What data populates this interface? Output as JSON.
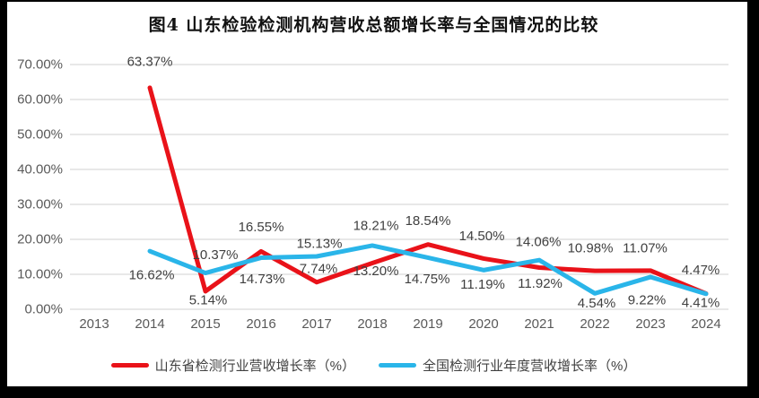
{
  "title": "图4  山东检验检测机构营收总额增长率与全国情况的比较",
  "colors": {
    "frame": "#000000",
    "surface": "#ffffff",
    "grid": "#d9d9d9",
    "axis_tick_text": "#595959",
    "data_label_text": "#404040",
    "title_text": "#111111"
  },
  "chart_data": {
    "type": "line",
    "categories": [
      "2013",
      "2014",
      "2015",
      "2016",
      "2017",
      "2018",
      "2019",
      "2020",
      "2021",
      "2022",
      "2023",
      "2024"
    ],
    "series": [
      {
        "name": "山东省检测行业营收增长率（%）",
        "color": "#e91219",
        "values": [
          null,
          63.37,
          5.14,
          16.55,
          7.74,
          13.2,
          18.54,
          14.5,
          11.92,
          10.98,
          11.07,
          4.47
        ]
      },
      {
        "name": "全国检测行业年度营收增长率（%）",
        "color": "#2ab5e9",
        "values": [
          null,
          16.62,
          10.37,
          14.73,
          15.13,
          18.21,
          14.75,
          11.19,
          14.06,
          4.54,
          9.22,
          4.41
        ]
      }
    ],
    "ylim": [
      0,
      70
    ],
    "ytick_step": 10,
    "y_ticks": [
      "0.00%",
      "10.00%",
      "20.00%",
      "30.00%",
      "40.00%",
      "50.00%",
      "60.00%",
      "70.00%"
    ],
    "grid": true,
    "legend_position": "bottom",
    "value_suffix": "%",
    "value_decimals": 2
  }
}
